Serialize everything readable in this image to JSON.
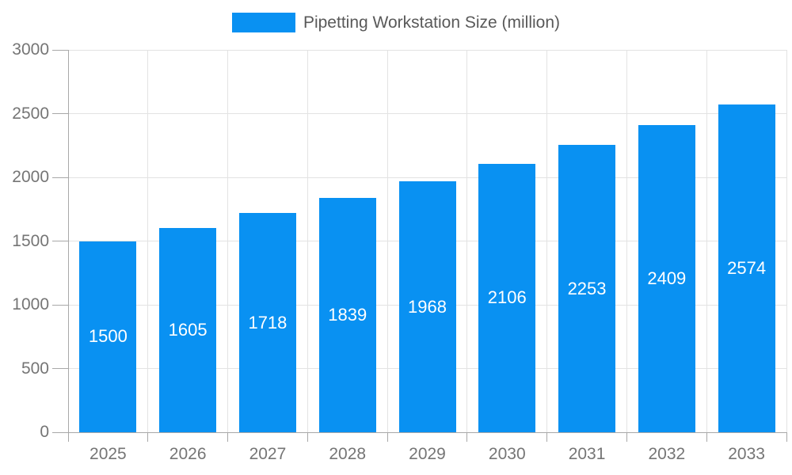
{
  "chart_data": {
    "type": "bar",
    "title": "Pipetting Workstation Size (million)",
    "categories": [
      "2025",
      "2026",
      "2027",
      "2028",
      "2029",
      "2030",
      "2031",
      "2032",
      "2033"
    ],
    "values": [
      1500,
      1605,
      1718,
      1839,
      1968,
      2106,
      2253,
      2409,
      2574
    ],
    "series_name": "Pipetting Workstation Size (million)",
    "xlabel": "",
    "ylabel": "",
    "ylim": [
      0,
      3000
    ],
    "yticks": [
      0,
      500,
      1000,
      1500,
      2000,
      2500,
      3000
    ],
    "grid": true,
    "legend_position": "top",
    "data_labels": "inside-center",
    "colors": {
      "bar": "#0991f2",
      "bar_label": "#ffffff",
      "grid": "#e3e3e3",
      "axis_line": "#a8a8a8",
      "axis_text": "#757575",
      "legend_text": "#595959",
      "background": "#ffffff"
    }
  }
}
